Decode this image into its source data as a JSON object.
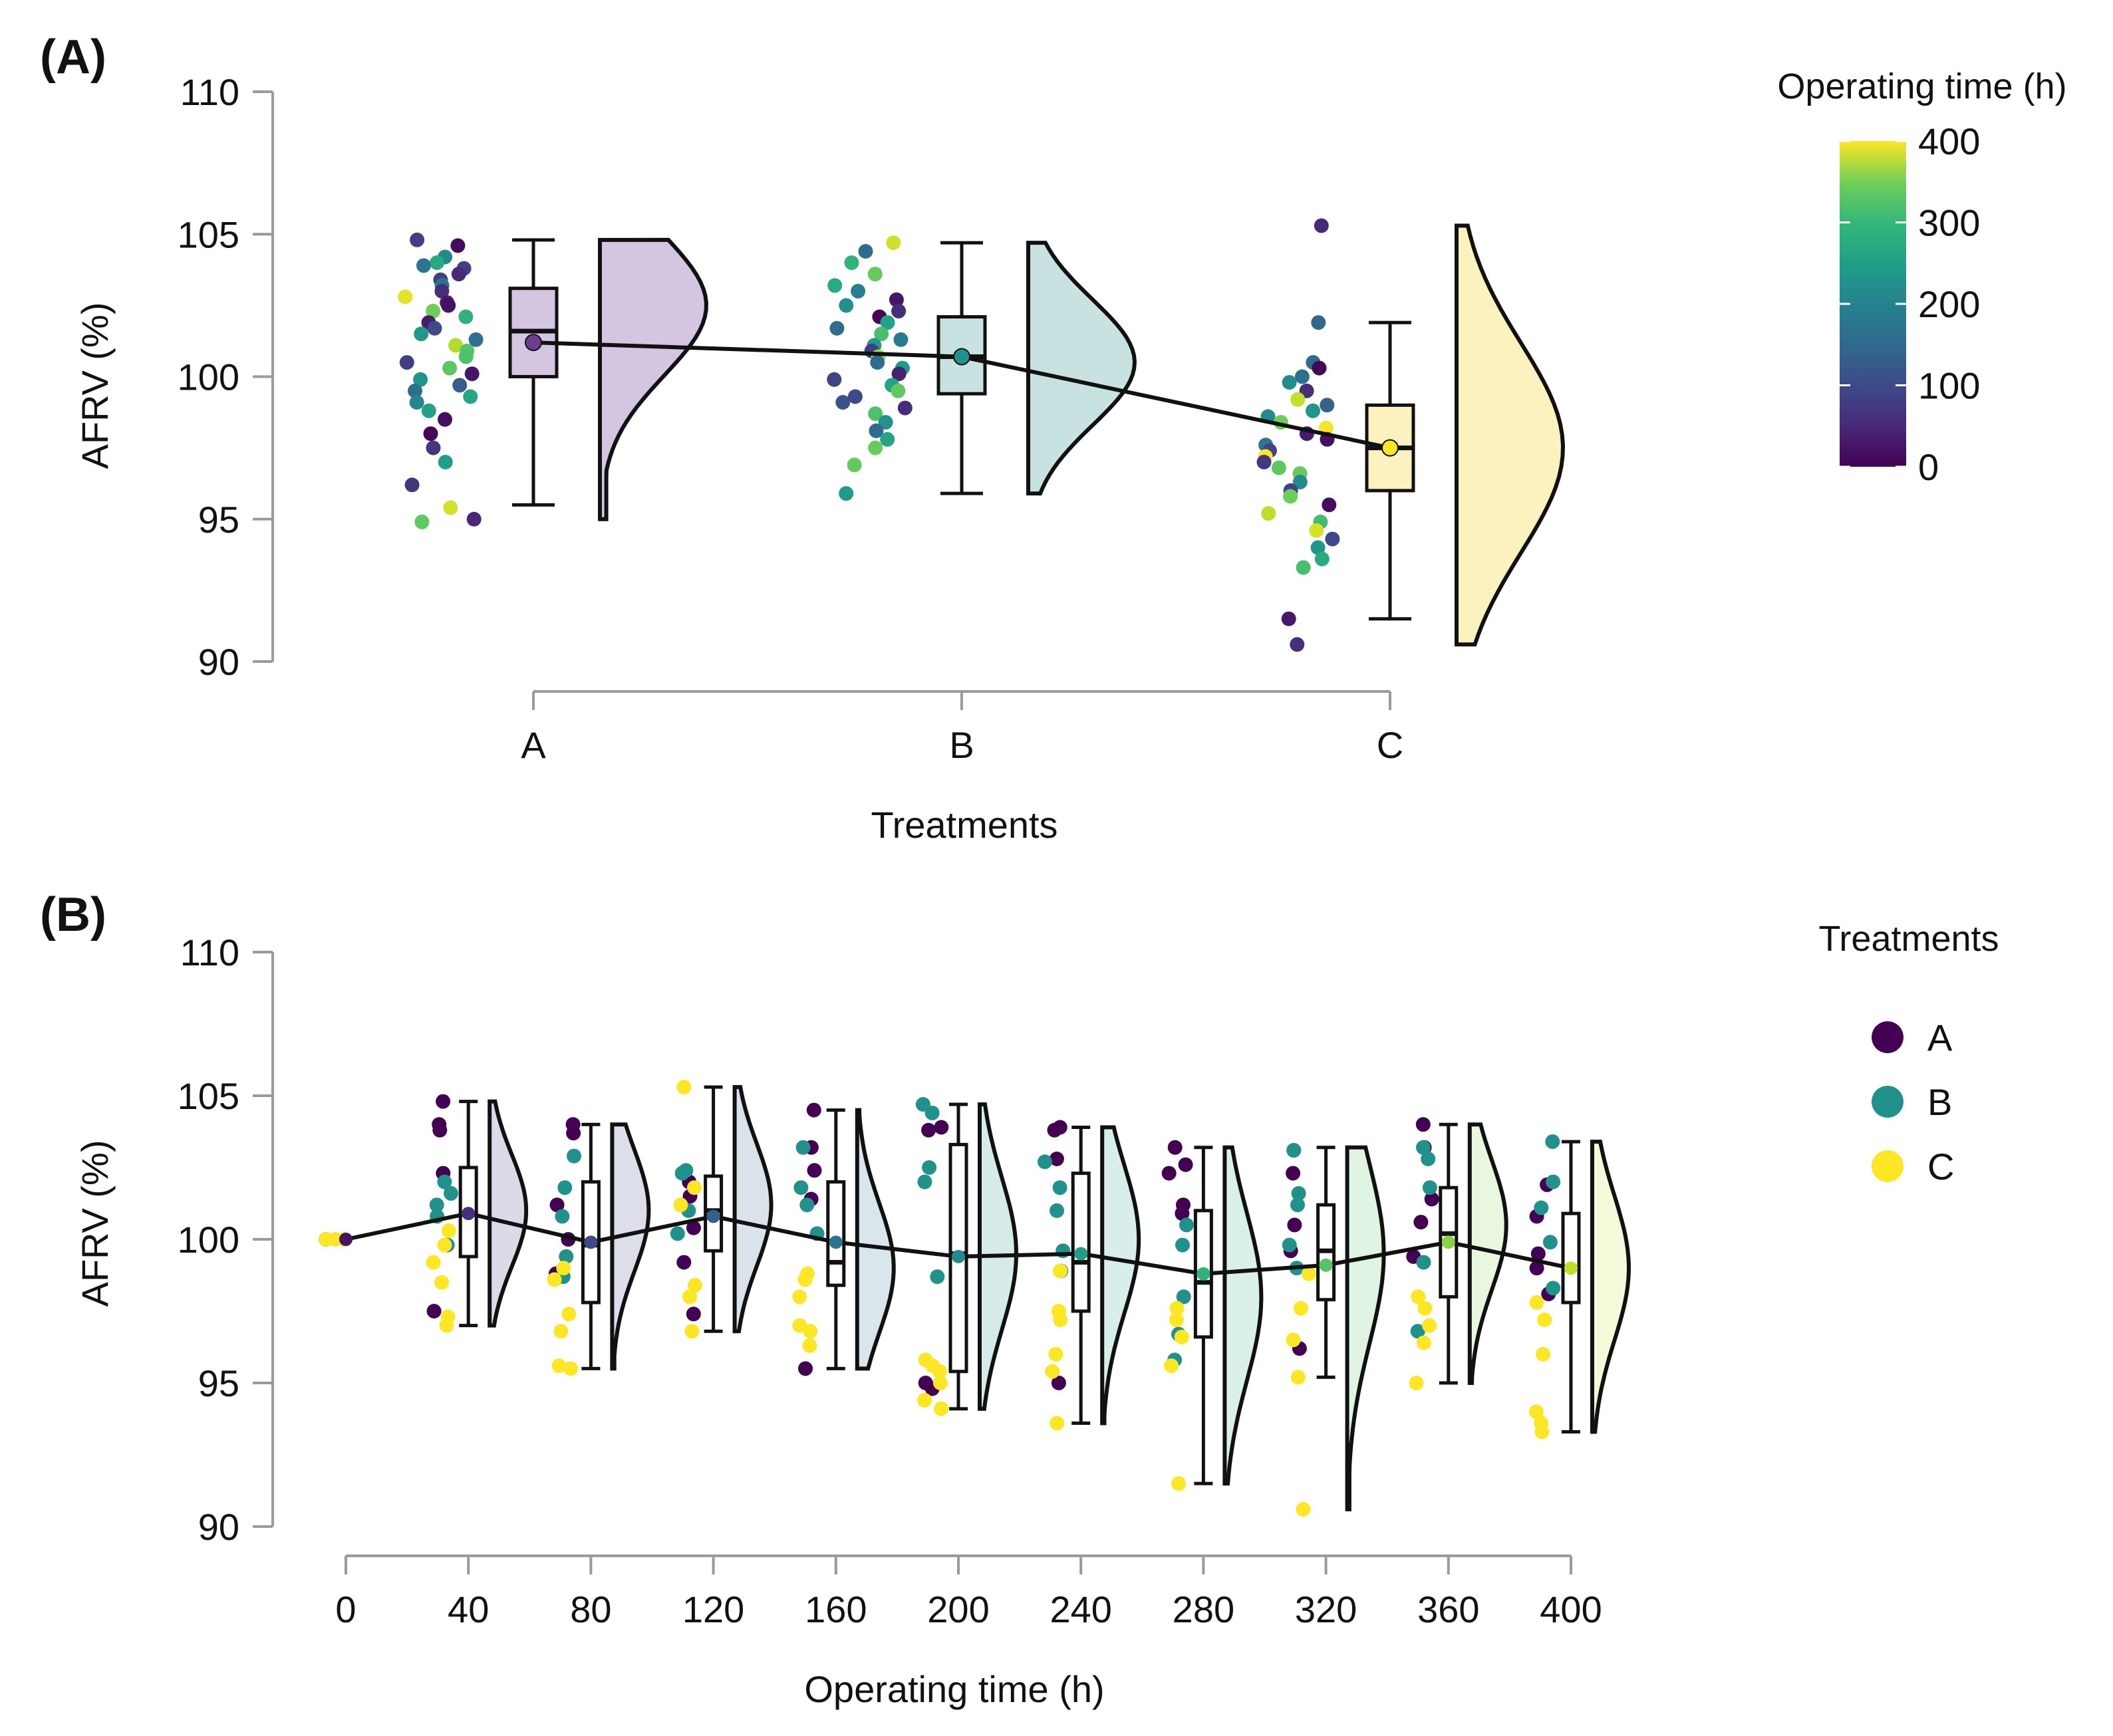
{
  "figure": {
    "panel_a_label": "(A)",
    "panel_b_label": "(B)",
    "colorbar": {
      "title": "Operating time (h)",
      "ticks": [
        {
          "label": "400",
          "value": 400
        },
        {
          "label": "300",
          "value": 300
        },
        {
          "label": "200",
          "value": 200
        },
        {
          "label": "100",
          "value": 100
        },
        {
          "label": "0",
          "value": 0
        }
      ]
    },
    "legend_b": {
      "title": "Treatments",
      "items": [
        {
          "label": "A",
          "color": "#440154"
        },
        {
          "label": "B",
          "color": "#21918c"
        },
        {
          "label": "C",
          "color": "#fde725"
        }
      ]
    }
  },
  "chart_data": [
    {
      "type": "raincloud",
      "panel": "A",
      "xlabel": "Treatments",
      "ylabel": "AFRV (%)",
      "ylim": [
        90,
        110
      ],
      "yticks": [
        {
          "label": "110",
          "value": 110
        },
        {
          "label": "105",
          "value": 105
        },
        {
          "label": "100",
          "value": 100
        },
        {
          "label": "95",
          "value": 95
        },
        {
          "label": "90",
          "value": 90
        }
      ],
      "groups": [
        {
          "label": "A",
          "color": "#d4c5e0",
          "min": 95.5,
          "q1": 100.0,
          "median": 101.6,
          "q3": 103.1,
          "max": 104.8,
          "mean": 101.2,
          "violin_min": 95.0,
          "violin_max": 104.8,
          "violin_mode": 102.5,
          "points": [
            104.8,
            104.6,
            104.2,
            104.0,
            103.9,
            103.8,
            103.6,
            103.4,
            103.2,
            103.0,
            102.8,
            102.6,
            102.5,
            102.3,
            102.1,
            101.9,
            101.7,
            101.5,
            101.3,
            101.1,
            100.9,
            100.7,
            100.5,
            100.3,
            100.1,
            99.9,
            99.7,
            99.5,
            99.3,
            99.1,
            98.8,
            98.5,
            98.0,
            97.5,
            97.0,
            96.2,
            95.4,
            95.0,
            94.9
          ]
        },
        {
          "label": "B",
          "color": "#c7e2e1",
          "min": 95.9,
          "q1": 99.4,
          "median": 100.7,
          "q3": 102.1,
          "max": 104.7,
          "mean": 100.7,
          "violin_min": 95.9,
          "violin_max": 104.7,
          "violin_mode": 100.5,
          "points": [
            104.7,
            104.4,
            104.0,
            103.6,
            103.2,
            103.0,
            102.7,
            102.5,
            102.3,
            102.1,
            101.9,
            101.7,
            101.5,
            101.3,
            101.1,
            100.9,
            100.7,
            100.5,
            100.3,
            100.1,
            99.9,
            99.7,
            99.5,
            99.3,
            99.1,
            98.9,
            98.7,
            98.4,
            98.1,
            97.8,
            97.5,
            96.9,
            95.9
          ]
        },
        {
          "label": "C",
          "color": "#fbf2c0",
          "min": 91.5,
          "q1": 96.0,
          "median": 97.5,
          "q3": 99.0,
          "max": 101.9,
          "mean": 97.5,
          "violin_min": 90.6,
          "violin_max": 105.3,
          "violin_mode": 97.5,
          "points": [
            105.3,
            101.9,
            100.5,
            100.3,
            100.0,
            99.8,
            99.5,
            99.2,
            99.0,
            98.8,
            98.6,
            98.4,
            98.2,
            98.0,
            97.8,
            97.6,
            97.4,
            97.2,
            97.0,
            96.8,
            96.6,
            96.3,
            96.0,
            95.8,
            95.5,
            95.2,
            94.9,
            94.6,
            94.3,
            94.0,
            93.6,
            93.3,
            91.5,
            90.6
          ]
        }
      ],
      "mean_line": [
        101.2,
        100.7,
        97.5
      ]
    },
    {
      "type": "raincloud",
      "panel": "B",
      "xlabel": "Operating time (h)",
      "ylabel": "AFRV (%)",
      "ylim": [
        90,
        110
      ],
      "yticks": [
        {
          "label": "110",
          "value": 110
        },
        {
          "label": "105",
          "value": 105
        },
        {
          "label": "100",
          "value": 100
        },
        {
          "label": "95",
          "value": 95
        },
        {
          "label": "90",
          "value": 90
        }
      ],
      "x_categories": [
        "0",
        "40",
        "80",
        "120",
        "160",
        "200",
        "240",
        "280",
        "320",
        "360",
        "400"
      ],
      "groups": [
        {
          "label": "0",
          "min": 100.0,
          "q1": 100.0,
          "median": 100.0,
          "q3": 100.0,
          "max": 100.0,
          "mean": 100.0,
          "violin": false,
          "points_A": [
            100.0
          ],
          "points_B": [
            100.0
          ],
          "points_C": [
            100.0,
            100.0,
            100.0
          ]
        },
        {
          "label": "40",
          "min": 97.0,
          "q1": 99.4,
          "median": 100.9,
          "q3": 102.5,
          "max": 104.8,
          "mean": 100.9,
          "violin": true,
          "violin_min": 97.0,
          "violin_max": 104.8,
          "violin_mode": 101.0,
          "points_A": [
            104.8,
            104.0,
            103.8,
            102.3,
            97.5
          ],
          "points_B": [
            102.0,
            101.6,
            101.2,
            100.8,
            99.8
          ],
          "points_C": [
            100.3,
            99.8,
            99.2,
            98.5,
            97.3,
            97.0
          ]
        },
        {
          "label": "80",
          "min": 95.5,
          "q1": 97.8,
          "median": 99.8,
          "q3": 102.0,
          "max": 104.0,
          "mean": 99.9,
          "violin": true,
          "violin_min": 95.5,
          "violin_max": 104.0,
          "violin_mode": 101.0,
          "points_A": [
            104.0,
            103.7,
            101.2,
            100.0,
            98.8
          ],
          "points_B": [
            102.9,
            101.8,
            100.8,
            99.4,
            98.7
          ],
          "points_C": [
            99.0,
            98.6,
            97.4,
            96.8,
            95.6,
            95.5
          ]
        },
        {
          "label": "120",
          "min": 96.8,
          "q1": 99.6,
          "median": 101.0,
          "q3": 102.2,
          "max": 105.3,
          "mean": 100.8,
          "violin": true,
          "violin_min": 96.8,
          "violin_max": 105.3,
          "violin_mode": 101.2,
          "points_A": [
            102.0,
            101.5,
            100.4,
            99.2,
            97.4
          ],
          "points_B": [
            102.4,
            102.3,
            101.0,
            100.2
          ],
          "points_C": [
            105.3,
            101.8,
            101.2,
            98.4,
            98.0,
            96.8
          ]
        },
        {
          "label": "160",
          "min": 95.5,
          "q1": 98.4,
          "median": 99.2,
          "q3": 102.0,
          "max": 104.5,
          "mean": 99.9,
          "violin": true,
          "violin_min": 95.5,
          "violin_max": 104.5,
          "violin_mode": 99.0,
          "points_A": [
            104.5,
            103.2,
            102.4,
            101.4,
            95.5
          ],
          "points_B": [
            103.2,
            101.8,
            101.2,
            100.2
          ],
          "points_C": [
            98.8,
            98.6,
            98.0,
            97.0,
            96.8,
            96.3
          ]
        },
        {
          "label": "200",
          "min": 94.1,
          "q1": 95.4,
          "median": 99.5,
          "q3": 103.3,
          "max": 104.7,
          "mean": 99.4,
          "violin": true,
          "violin_min": 94.1,
          "violin_max": 104.7,
          "violin_mode": 99.5,
          "points_A": [
            103.9,
            103.8,
            95.0,
            94.8
          ],
          "points_B": [
            104.7,
            104.4,
            102.5,
            102.0,
            98.7
          ],
          "points_C": [
            95.8,
            95.6,
            95.4,
            95.0,
            94.4,
            94.1
          ]
        },
        {
          "label": "240",
          "min": 93.6,
          "q1": 97.5,
          "median": 99.2,
          "q3": 102.3,
          "max": 103.9,
          "mean": 99.5,
          "violin": true,
          "violin_min": 93.6,
          "violin_max": 103.9,
          "violin_mode": 100.0,
          "points_A": [
            103.9,
            103.8,
            102.8,
            95.0
          ],
          "points_B": [
            102.7,
            101.8,
            101.0,
            99.6,
            98.9
          ],
          "points_C": [
            98.9,
            97.5,
            97.2,
            96.0,
            95.4,
            93.6
          ]
        },
        {
          "label": "280",
          "min": 91.5,
          "q1": 96.6,
          "median": 98.5,
          "q3": 101.0,
          "max": 103.2,
          "mean": 98.8,
          "violin": true,
          "violin_min": 91.5,
          "violin_max": 103.2,
          "violin_mode": 98.0,
          "points_A": [
            103.2,
            102.6,
            102.3,
            101.2,
            100.9
          ],
          "points_B": [
            100.5,
            99.8,
            98.0,
            96.7,
            95.8
          ],
          "points_C": [
            97.6,
            97.2,
            96.6,
            95.6,
            91.5
          ]
        },
        {
          "label": "320",
          "min": 95.2,
          "q1": 97.9,
          "median": 99.6,
          "q3": 101.2,
          "max": 103.2,
          "mean": 99.1,
          "violin": true,
          "violin_min": 90.6,
          "violin_max": 103.2,
          "violin_mode": 99.5,
          "points_A": [
            103.1,
            102.3,
            100.5,
            99.6,
            96.2
          ],
          "points_B": [
            103.1,
            101.6,
            101.2,
            99.8,
            99.0
          ],
          "points_C": [
            98.8,
            97.6,
            96.5,
            95.2,
            90.6
          ]
        },
        {
          "label": "360",
          "min": 95.0,
          "q1": 98.0,
          "median": 100.2,
          "q3": 101.8,
          "max": 104.0,
          "mean": 99.9,
          "violin": true,
          "violin_min": 95.0,
          "violin_max": 104.0,
          "violin_mode": 100.5,
          "points_A": [
            104.0,
            103.2,
            101.4,
            100.6,
            99.4
          ],
          "points_B": [
            103.2,
            102.8,
            101.8,
            99.2,
            96.8
          ],
          "points_C": [
            98.0,
            97.6,
            97.0,
            96.4,
            95.0
          ]
        },
        {
          "label": "400",
          "min": 93.3,
          "q1": 97.8,
          "median": 99.0,
          "q3": 100.9,
          "max": 103.4,
          "mean": 99.0,
          "violin": true,
          "violin_min": 93.3,
          "violin_max": 103.4,
          "violin_mode": 99.0,
          "points_A": [
            101.9,
            100.8,
            99.5,
            99.0,
            98.1
          ],
          "points_B": [
            103.4,
            102.0,
            101.1,
            99.9,
            98.3
          ],
          "points_C": [
            97.8,
            97.2,
            96.0,
            94.0,
            93.6,
            93.3
          ]
        }
      ],
      "mean_line": [
        100.0,
        100.9,
        99.9,
        100.8,
        99.9,
        99.4,
        99.5,
        98.8,
        99.1,
        99.9,
        99.0
      ]
    }
  ]
}
